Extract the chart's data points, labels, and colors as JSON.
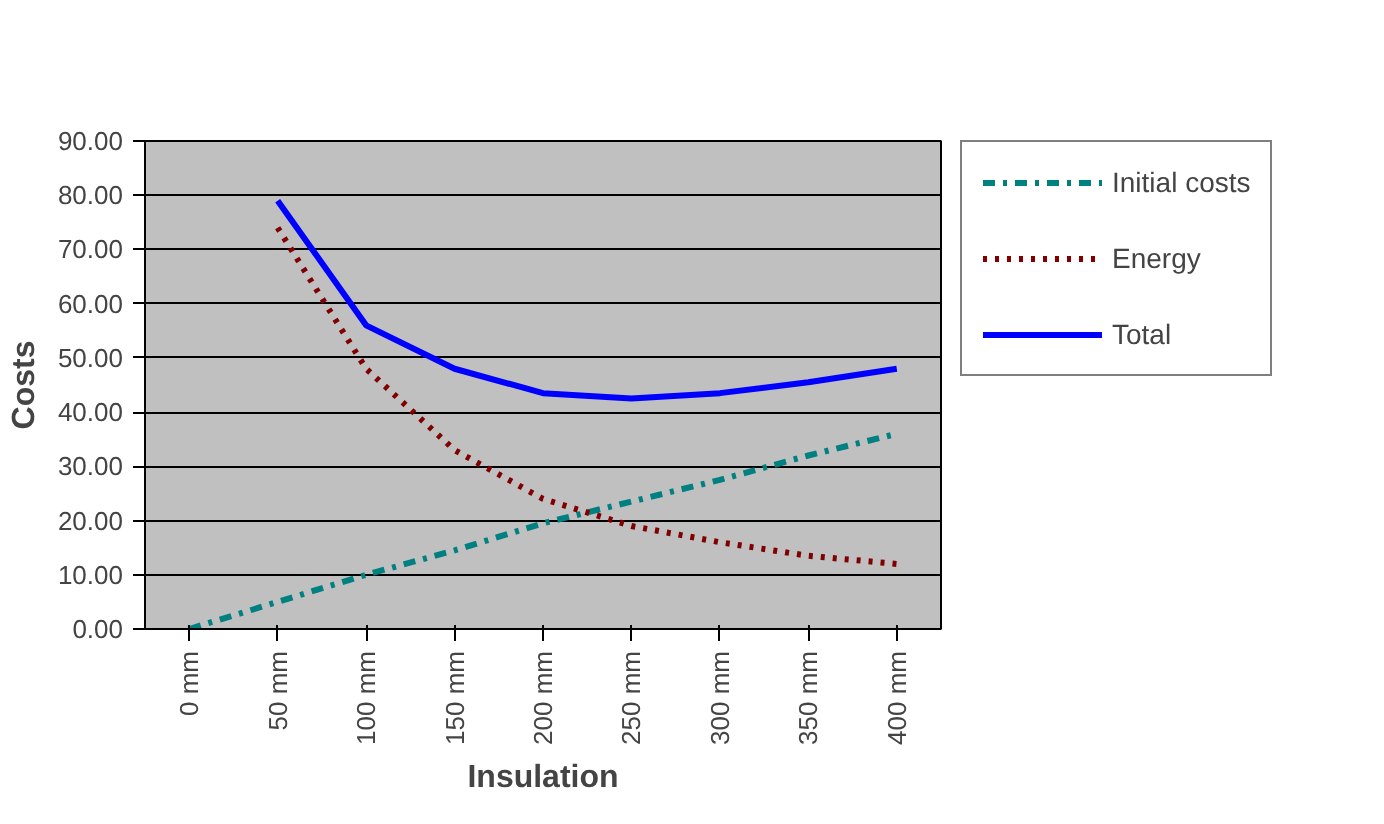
{
  "chart_data": {
    "type": "line",
    "xlabel": "Insulation",
    "ylabel": "Costs",
    "categories": [
      "0 mm",
      "50 mm",
      "100 mm",
      "150 mm",
      "200 mm",
      "250 mm",
      "300 mm",
      "350 mm",
      "400 mm"
    ],
    "ylim": [
      0,
      90
    ],
    "yticks": [
      {
        "value": 0,
        "label": "0.00"
      },
      {
        "value": 10,
        "label": "10.00"
      },
      {
        "value": 20,
        "label": "20.00"
      },
      {
        "value": 30,
        "label": "30.00"
      },
      {
        "value": 40,
        "label": "40.00"
      },
      {
        "value": 50,
        "label": "50.00"
      },
      {
        "value": 60,
        "label": "60.00"
      },
      {
        "value": 70,
        "label": "70.00"
      },
      {
        "value": 80,
        "label": "80.00"
      },
      {
        "value": 90,
        "label": "90.00"
      }
    ],
    "grid": "y",
    "legend": "right",
    "marker": "none",
    "series": [
      {
        "name": "Initial costs",
        "color": "#008080",
        "line_style": "dashed",
        "values": [
          0,
          5,
          10,
          14.5,
          19.5,
          23.5,
          27.5,
          32,
          36
        ]
      },
      {
        "name": "Energy",
        "color": "#800000",
        "line_style": "dotted",
        "values": [
          null,
          74,
          48,
          33,
          24,
          19,
          16,
          13.5,
          12
        ]
      },
      {
        "name": "Total",
        "color": "#0000ff",
        "line_style": "solid",
        "values": [
          null,
          79,
          56,
          48,
          43.5,
          42.5,
          43.5,
          45.5,
          48
        ]
      }
    ]
  }
}
